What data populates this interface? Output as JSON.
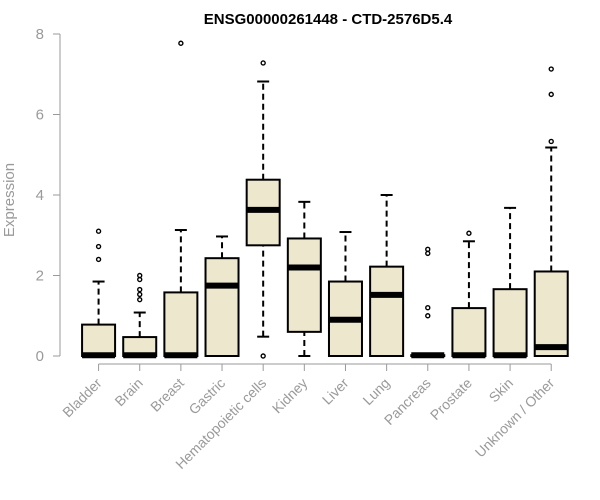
{
  "colors": {
    "box_fill": "#ede7cd",
    "box_stroke": "#000000",
    "axis": "#9a9a9a"
  },
  "chart_data": {
    "type": "boxplot",
    "title": "ENSG00000261448 - CTD-2576D5.4",
    "ylabel": "Expression",
    "xlabel": "",
    "ylim": [
      0,
      8
    ],
    "yticks": [
      0,
      2,
      4,
      6,
      8
    ],
    "grid": false,
    "categories": [
      "Bladder",
      "Brain",
      "Breast",
      "Gastric",
      "Hematopoietic cells",
      "Kidney",
      "Liver",
      "Lung",
      "Pancreas",
      "Prostate",
      "Skin",
      "Unknown / Other"
    ],
    "boxes": [
      {
        "whisker_low": 0,
        "q1": 0,
        "median": 0.02,
        "q3": 0.78,
        "whisker_high": 1.85,
        "outliers": [
          2.4,
          2.72,
          3.1
        ]
      },
      {
        "whisker_low": 0,
        "q1": 0,
        "median": 0.02,
        "q3": 0.47,
        "whisker_high": 1.08,
        "outliers": [
          1.4,
          1.53,
          1.65,
          1.9,
          2.0
        ]
      },
      {
        "whisker_low": 0,
        "q1": 0,
        "median": 0.02,
        "q3": 1.58,
        "whisker_high": 3.13,
        "outliers": [
          7.77
        ]
      },
      {
        "whisker_low": 0,
        "q1": 0,
        "median": 1.75,
        "q3": 2.43,
        "whisker_high": 2.97,
        "outliers": []
      },
      {
        "whisker_low": 0.48,
        "q1": 2.75,
        "median": 3.63,
        "q3": 4.38,
        "whisker_high": 6.82,
        "outliers": [
          0,
          7.28
        ]
      },
      {
        "whisker_low": 0,
        "q1": 0.6,
        "median": 2.2,
        "q3": 2.92,
        "whisker_high": 3.83,
        "outliers": []
      },
      {
        "whisker_low": 0,
        "q1": 0,
        "median": 0.9,
        "q3": 1.85,
        "whisker_high": 3.08,
        "outliers": []
      },
      {
        "whisker_low": 0,
        "q1": 0,
        "median": 1.52,
        "q3": 2.22,
        "whisker_high": 4.0,
        "outliers": []
      },
      {
        "whisker_low": 0,
        "q1": 0,
        "median": 0.02,
        "q3": 0.02,
        "whisker_high": 0.02,
        "outliers": [
          1.0,
          1.2,
          2.55,
          2.65
        ]
      },
      {
        "whisker_low": 0,
        "q1": 0,
        "median": 0.02,
        "q3": 1.19,
        "whisker_high": 2.85,
        "outliers": [
          3.05
        ]
      },
      {
        "whisker_low": 0,
        "q1": 0,
        "median": 0.02,
        "q3": 1.66,
        "whisker_high": 3.68,
        "outliers": []
      },
      {
        "whisker_low": 0,
        "q1": 0,
        "median": 0.22,
        "q3": 2.1,
        "whisker_high": 5.18,
        "outliers": [
          5.33,
          6.5,
          7.13
        ]
      }
    ]
  }
}
